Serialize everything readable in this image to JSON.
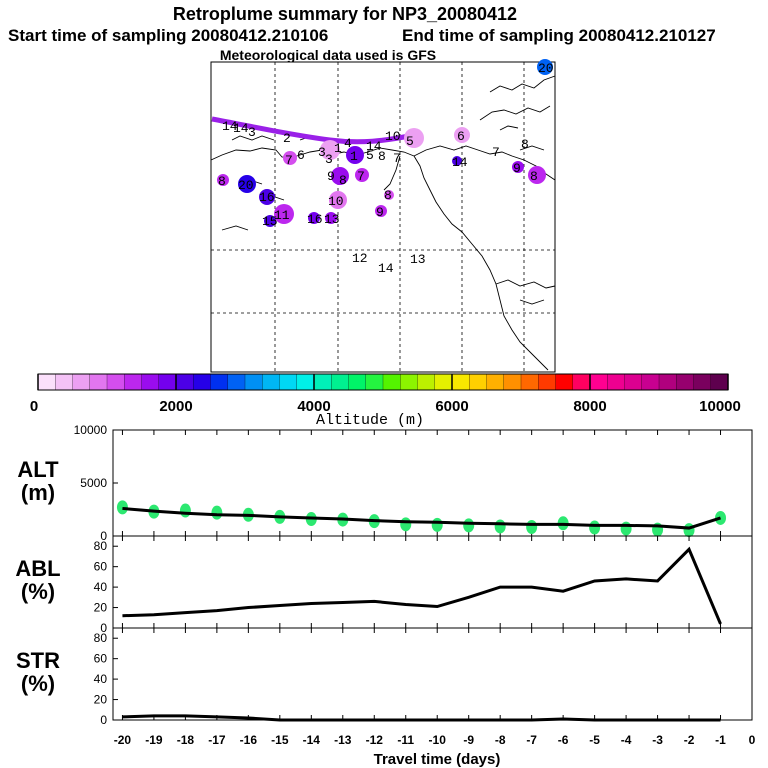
{
  "header": {
    "title": "Retroplume summary for NP3_20080412",
    "start_label": "Start time of sampling 20080412.210106",
    "end_label": "End time of sampling 20080412.210127",
    "met_label": "Meteorological data used is GFS"
  },
  "colors": {
    "track": "#9a20e8",
    "alt_points": "#2ce870",
    "line": "#000000"
  },
  "colorbar": {
    "ticks": [
      "0",
      "2000",
      "4000",
      "6000",
      "8000",
      "10000"
    ],
    "tick_values": [
      0,
      2000,
      4000,
      6000,
      8000,
      10000
    ],
    "label": "Altitude (m)",
    "colors": [
      "#fbe0fb",
      "#f4c2f6",
      "#eca0f2",
      "#e276ef",
      "#d44eee",
      "#bc27ee",
      "#9a0cee",
      "#7400ee",
      "#4c00e6",
      "#2600e8",
      "#0030f0",
      "#0062f4",
      "#0090f4",
      "#00b6f4",
      "#00d8f4",
      "#00f0e8",
      "#00f0b8",
      "#00f090",
      "#00f468",
      "#24f440",
      "#54f400",
      "#8cf400",
      "#bcf000",
      "#e4f000",
      "#f8e800",
      "#ffd000",
      "#ffb000",
      "#ff9000",
      "#ff6800",
      "#ff3a00",
      "#ff0000",
      "#ff0060",
      "#ff0090",
      "#ee0090",
      "#dc0090",
      "#c80090",
      "#b0007e",
      "#96006e",
      "#7a005e",
      "#5e004e"
    ]
  },
  "map_labels": [
    {
      "text": "1",
      "color": "#d44eee"
    },
    {
      "text": "2",
      "color": "#d44eee"
    },
    {
      "text": "3",
      "color": "#eca0f2"
    },
    {
      "text": "4",
      "color": "#e276ef"
    },
    {
      "text": "5",
      "color": "#eca0f2"
    },
    {
      "text": "6",
      "color": "#d44eee"
    },
    {
      "text": "7",
      "color": "#bc27ee"
    },
    {
      "text": "8",
      "color": "#bc27ee"
    },
    {
      "text": "9",
      "color": "#9a0cee"
    },
    {
      "text": "10",
      "color": "#e276ef"
    },
    {
      "text": "11",
      "color": "#bc27ee"
    },
    {
      "text": "12",
      "color": "#e276ef"
    },
    {
      "text": "13",
      "color": "#9a0cee"
    },
    {
      "text": "14",
      "color": "#7400ee"
    },
    {
      "text": "15",
      "color": "#4c00e6"
    },
    {
      "text": "16",
      "color": "#4c00e6"
    },
    {
      "text": "19",
      "color": "#2600e8"
    },
    {
      "text": "20",
      "color": "#0030f0"
    }
  ],
  "chart_data": [
    {
      "type": "scatter",
      "name": "ALT",
      "ylabel": "ALT\n(m)",
      "ylabel_lines": [
        "ALT",
        "(m)"
      ],
      "x": [
        -20,
        -19,
        -18,
        -17,
        -16,
        -15,
        -14,
        -13,
        -12,
        -11,
        -10,
        -9,
        -8,
        -7,
        -6,
        -5,
        -4,
        -3,
        -2,
        -1
      ],
      "line_x": [
        -20,
        -19,
        -18,
        -17,
        -16,
        -15,
        -14,
        -13,
        -12,
        -11,
        -10,
        -9,
        -8,
        -7,
        -6,
        -5,
        -4,
        -3,
        -2,
        -1
      ],
      "line_values": [
        2600,
        2350,
        2150,
        2000,
        1950,
        1800,
        1700,
        1600,
        1450,
        1350,
        1300,
        1200,
        1150,
        1100,
        1100,
        1000,
        1000,
        950,
        750,
        1700
      ],
      "points": [
        {
          "x": -20,
          "y": 2700
        },
        {
          "x": -19,
          "y": 2300
        },
        {
          "x": -18,
          "y": 2400
        },
        {
          "x": -17,
          "y": 2200
        },
        {
          "x": -16,
          "y": 2000
        },
        {
          "x": -15,
          "y": 1800
        },
        {
          "x": -14,
          "y": 1600
        },
        {
          "x": -13,
          "y": 1550
        },
        {
          "x": -12,
          "y": 1400
        },
        {
          "x": -11,
          "y": 1100
        },
        {
          "x": -10,
          "y": 1050
        },
        {
          "x": -9,
          "y": 1000
        },
        {
          "x": -8,
          "y": 900
        },
        {
          "x": -7,
          "y": 850
        },
        {
          "x": -6,
          "y": 1200
        },
        {
          "x": -5,
          "y": 800
        },
        {
          "x": -4,
          "y": 700
        },
        {
          "x": -3,
          "y": 600
        },
        {
          "x": -2,
          "y": 550
        },
        {
          "x": -1,
          "y": 1700
        }
      ],
      "ylim": [
        0,
        10000
      ],
      "yticks": [
        "0",
        "5000",
        "10000"
      ],
      "ytick_values": [
        0,
        5000,
        10000
      ]
    },
    {
      "type": "line",
      "name": "ABL",
      "ylabel_lines": [
        "ABL",
        "(%)"
      ],
      "x": [
        -20,
        -19,
        -18,
        -17,
        -16,
        -15,
        -14,
        -13,
        -12,
        -11,
        -10,
        -9,
        -8,
        -7,
        -6,
        -5,
        -4,
        -3,
        -2,
        -1
      ],
      "values": [
        12,
        13,
        15,
        17,
        20,
        22,
        24,
        25,
        26,
        23,
        21,
        30,
        40,
        40,
        36,
        46,
        48,
        46,
        77,
        4
      ],
      "ylim": [
        0,
        90
      ],
      "yticks": [
        "0",
        "20",
        "40",
        "60",
        "80"
      ],
      "ytick_values": [
        0,
        20,
        40,
        60,
        80
      ]
    },
    {
      "type": "line",
      "name": "STR",
      "ylabel_lines": [
        "STR",
        "(%)"
      ],
      "x": [
        -20,
        -19,
        -18,
        -17,
        -16,
        -15,
        -14,
        -13,
        -12,
        -11,
        -10,
        -9,
        -8,
        -7,
        -6,
        -5,
        -4,
        -3,
        -2,
        -1
      ],
      "values": [
        3,
        4,
        4,
        3,
        2,
        0,
        0,
        0,
        0,
        0,
        0,
        0,
        0,
        0,
        1,
        0,
        0,
        0,
        0,
        0
      ],
      "ylim": [
        0,
        90
      ],
      "yticks": [
        "0",
        "20",
        "40",
        "60",
        "80"
      ],
      "ytick_values": [
        0,
        20,
        40,
        60,
        80
      ]
    }
  ],
  "xaxis": {
    "label": "Travel time (days)",
    "ticks": [
      "-20",
      "-19",
      "-18",
      "-17",
      "-16",
      "-15",
      "-14",
      "-13",
      "-12",
      "-11",
      "-10",
      "-9",
      "-8",
      "-7",
      "-6",
      "-5",
      "-4",
      "-3",
      "-2",
      "-1",
      "0"
    ],
    "tick_values": [
      -20,
      -19,
      -18,
      -17,
      -16,
      -15,
      -14,
      -13,
      -12,
      -11,
      -10,
      -9,
      -8,
      -7,
      -6,
      -5,
      -4,
      -3,
      -2,
      -1,
      0
    ]
  }
}
